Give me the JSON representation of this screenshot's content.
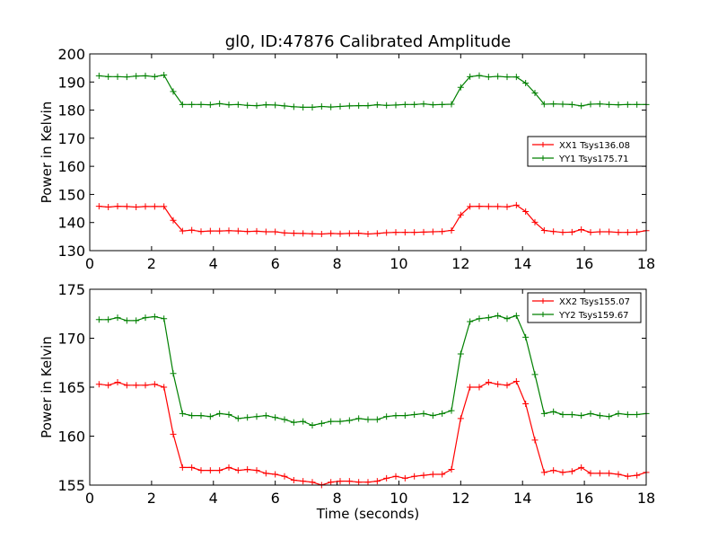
{
  "figure": {
    "title": "gl0, ID:47876 Calibrated Amplitude",
    "xlabel": "Time (seconds)"
  },
  "chart_data": [
    {
      "type": "line",
      "title": "gl0, ID:47876 Calibrated Amplitude",
      "xlabel": "",
      "ylabel": "Power in Kelvin",
      "xlim": [
        0,
        18
      ],
      "ylim": [
        130,
        200
      ],
      "xticks": [
        0,
        2,
        4,
        6,
        8,
        10,
        12,
        14,
        16,
        18
      ],
      "yticks": [
        130,
        140,
        150,
        160,
        170,
        180,
        190,
        200
      ],
      "grid": false,
      "legend_position": "right",
      "x": [
        0.3,
        0.6,
        0.9,
        1.2,
        1.5,
        1.8,
        2.1,
        2.4,
        2.7,
        3.0,
        3.3,
        3.6,
        3.9,
        4.2,
        4.5,
        4.8,
        5.1,
        5.4,
        5.7,
        6.0,
        6.3,
        6.6,
        6.9,
        7.2,
        7.5,
        7.8,
        8.1,
        8.4,
        8.7,
        9.0,
        9.3,
        9.6,
        9.9,
        10.2,
        10.5,
        10.8,
        11.1,
        11.4,
        11.7,
        12.0,
        12.3,
        12.6,
        12.9,
        13.2,
        13.5,
        13.8,
        14.1,
        14.4,
        14.7,
        15.0,
        15.3,
        15.6,
        15.9,
        16.2,
        16.5,
        16.8,
        17.1,
        17.4,
        17.7,
        18.0
      ],
      "series": [
        {
          "name": "XX1 Tsys136.08",
          "color": "#ff0000",
          "values": [
            145.8,
            145.5,
            145.8,
            145.7,
            145.5,
            145.7,
            145.7,
            145.7,
            140.8,
            137.0,
            137.3,
            136.8,
            137.0,
            137.0,
            137.1,
            137.0,
            136.8,
            136.9,
            136.7,
            136.7,
            136.3,
            136.2,
            136.1,
            136.0,
            135.9,
            136.1,
            136.0,
            136.1,
            136.2,
            135.9,
            136.1,
            136.4,
            136.5,
            136.5,
            136.5,
            136.6,
            136.7,
            136.8,
            137.2,
            142.7,
            145.7,
            145.8,
            145.7,
            145.7,
            145.6,
            146.2,
            143.9,
            140.1,
            137.2,
            136.8,
            136.5,
            136.6,
            137.5,
            136.5,
            136.7,
            136.7,
            136.5,
            136.5,
            136.6,
            137.1
          ]
        },
        {
          "name": "YY1 Tsys175.71",
          "color": "#008000",
          "values": [
            192.2,
            191.9,
            191.9,
            191.8,
            192.1,
            192.2,
            191.9,
            192.5,
            186.6,
            182.0,
            182.0,
            182.0,
            181.9,
            182.3,
            181.9,
            182.0,
            181.7,
            181.6,
            181.9,
            181.8,
            181.5,
            181.2,
            181.0,
            181.0,
            181.3,
            181.1,
            181.3,
            181.5,
            181.6,
            181.6,
            181.9,
            181.7,
            181.8,
            182.0,
            182.0,
            182.2,
            181.9,
            182.0,
            182.1,
            188.1,
            191.9,
            192.3,
            191.8,
            192.0,
            191.8,
            191.8,
            189.6,
            186.1,
            182.1,
            182.2,
            182.1,
            182.0,
            181.5,
            182.1,
            182.2,
            182.0,
            181.9,
            182.0,
            182.0,
            182.0
          ]
        }
      ]
    },
    {
      "type": "line",
      "title": "",
      "xlabel": "Time (seconds)",
      "ylabel": "Power in Kelvin",
      "xlim": [
        0,
        18
      ],
      "ylim": [
        155,
        175
      ],
      "xticks": [
        0,
        2,
        4,
        6,
        8,
        10,
        12,
        14,
        16,
        18
      ],
      "yticks": [
        155,
        160,
        165,
        170,
        175
      ],
      "grid": false,
      "legend_position": "top-right",
      "x": [
        0.3,
        0.6,
        0.9,
        1.2,
        1.5,
        1.8,
        2.1,
        2.4,
        2.7,
        3.0,
        3.3,
        3.6,
        3.9,
        4.2,
        4.5,
        4.8,
        5.1,
        5.4,
        5.7,
        6.0,
        6.3,
        6.6,
        6.9,
        7.2,
        7.5,
        7.8,
        8.1,
        8.4,
        8.7,
        9.0,
        9.3,
        9.6,
        9.9,
        10.2,
        10.5,
        10.8,
        11.1,
        11.4,
        11.7,
        12.0,
        12.3,
        12.6,
        12.9,
        13.2,
        13.5,
        13.8,
        14.1,
        14.4,
        14.7,
        15.0,
        15.3,
        15.6,
        15.9,
        16.2,
        16.5,
        16.8,
        17.1,
        17.4,
        17.7,
        18.0
      ],
      "series": [
        {
          "name": "XX2 Tsys155.07",
          "color": "#ff0000",
          "values": [
            165.3,
            165.2,
            165.5,
            165.2,
            165.2,
            165.2,
            165.3,
            165.0,
            160.2,
            156.8,
            156.8,
            156.5,
            156.5,
            156.5,
            156.8,
            156.5,
            156.6,
            156.5,
            156.2,
            156.1,
            155.9,
            155.5,
            155.4,
            155.3,
            155.0,
            155.3,
            155.4,
            155.4,
            155.3,
            155.3,
            155.4,
            155.7,
            155.9,
            155.7,
            155.9,
            156.0,
            156.1,
            156.1,
            156.6,
            161.8,
            165.0,
            165.0,
            165.5,
            165.3,
            165.2,
            165.6,
            163.3,
            159.6,
            156.3,
            156.5,
            156.3,
            156.4,
            156.8,
            156.2,
            156.2,
            156.2,
            156.1,
            155.9,
            156.0,
            156.3
          ]
        },
        {
          "name": "YY2 Tsys159.67",
          "color": "#008000",
          "values": [
            171.9,
            171.9,
            172.1,
            171.8,
            171.8,
            172.1,
            172.2,
            172.0,
            166.4,
            162.3,
            162.1,
            162.1,
            162.0,
            162.3,
            162.2,
            161.8,
            161.9,
            162.0,
            162.1,
            161.9,
            161.7,
            161.4,
            161.5,
            161.1,
            161.3,
            161.5,
            161.5,
            161.6,
            161.8,
            161.7,
            161.7,
            162.0,
            162.1,
            162.1,
            162.2,
            162.3,
            162.1,
            162.3,
            162.6,
            168.4,
            171.7,
            172.0,
            172.1,
            172.3,
            172.0,
            172.3,
            170.1,
            166.3,
            162.3,
            162.5,
            162.2,
            162.2,
            162.1,
            162.3,
            162.1,
            162.0,
            162.3,
            162.2,
            162.2,
            162.3
          ]
        }
      ]
    }
  ]
}
